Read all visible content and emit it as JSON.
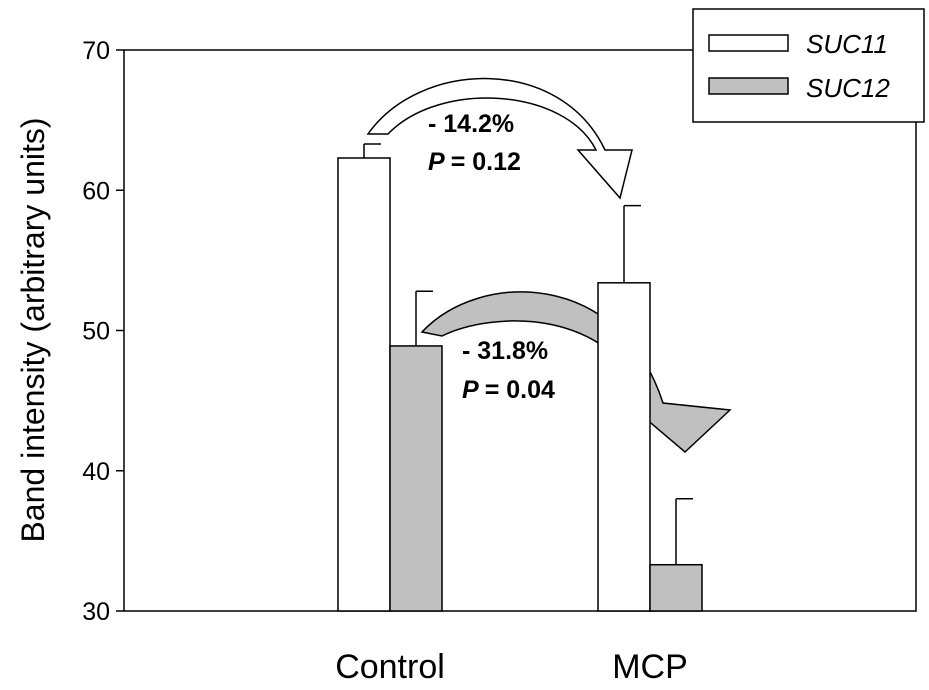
{
  "chart_data": {
    "type": "bar",
    "categories": [
      "Control",
      "MCP"
    ],
    "series": [
      {
        "name": "SUC11",
        "values": [
          62.3,
          53.4
        ],
        "errors": [
          1.0,
          5.5
        ],
        "color": "#ffffff"
      },
      {
        "name": "SUC12",
        "values": [
          48.9,
          33.3
        ],
        "errors": [
          3.9,
          4.7
        ],
        "color": "#c0c0c0"
      }
    ],
    "ylabel": "Band intensity (arbitrary units)",
    "xlabel": "",
    "ylim": [
      30,
      70
    ],
    "yticks": [
      30,
      40,
      50,
      60,
      70
    ],
    "grid": false,
    "legend_position": "top-right",
    "annotations": [
      {
        "change": "- 14.2%",
        "p_label": "P",
        "p_value": "= 0.12",
        "series": "SUC11"
      },
      {
        "change": "- 31.8%",
        "p_label": "P",
        "p_value": "= 0.04",
        "series": "SUC12"
      }
    ]
  }
}
